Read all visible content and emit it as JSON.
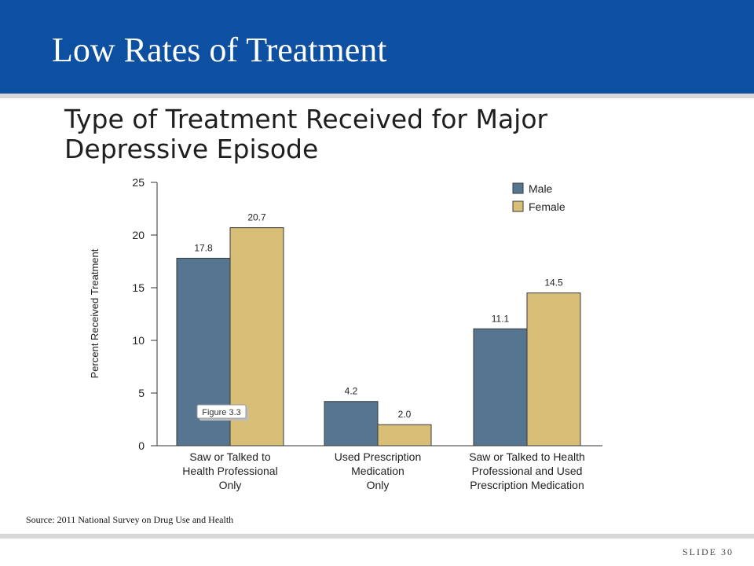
{
  "slide": {
    "title": "Low Rates of Treatment",
    "subtitle": "Type of Treatment Received for Major Depressive Episode",
    "source": "Source: 2011 National Survey on Drug Use and Health",
    "slide_number": "SLIDE 30"
  },
  "chart_data": {
    "type": "bar",
    "title": "",
    "ylabel": "Percent Received Treatment",
    "xlabel": "",
    "ylim": [
      0,
      25
    ],
    "yticks": [
      0,
      5,
      10,
      15,
      20,
      25
    ],
    "grid": false,
    "legend_position": "top-right",
    "categories": [
      [
        "Saw or Talked to",
        "Health Professional",
        "Only"
      ],
      [
        "Used Prescription",
        "Medication",
        "Only"
      ],
      [
        "Saw or Talked to Health",
        "Professional and Used",
        "Prescription Medication"
      ]
    ],
    "series": [
      {
        "name": "Male",
        "color": "#567590",
        "values": [
          17.8,
          4.2,
          11.1
        ],
        "labels": [
          "17.8",
          "4.2",
          "11.1"
        ]
      },
      {
        "name": "Female",
        "color": "#d8be77",
        "values": [
          20.7,
          2.0,
          14.5
        ],
        "labels": [
          "20.7",
          "2.0",
          "14.5"
        ]
      }
    ],
    "annotation": "Figure 3.3"
  }
}
